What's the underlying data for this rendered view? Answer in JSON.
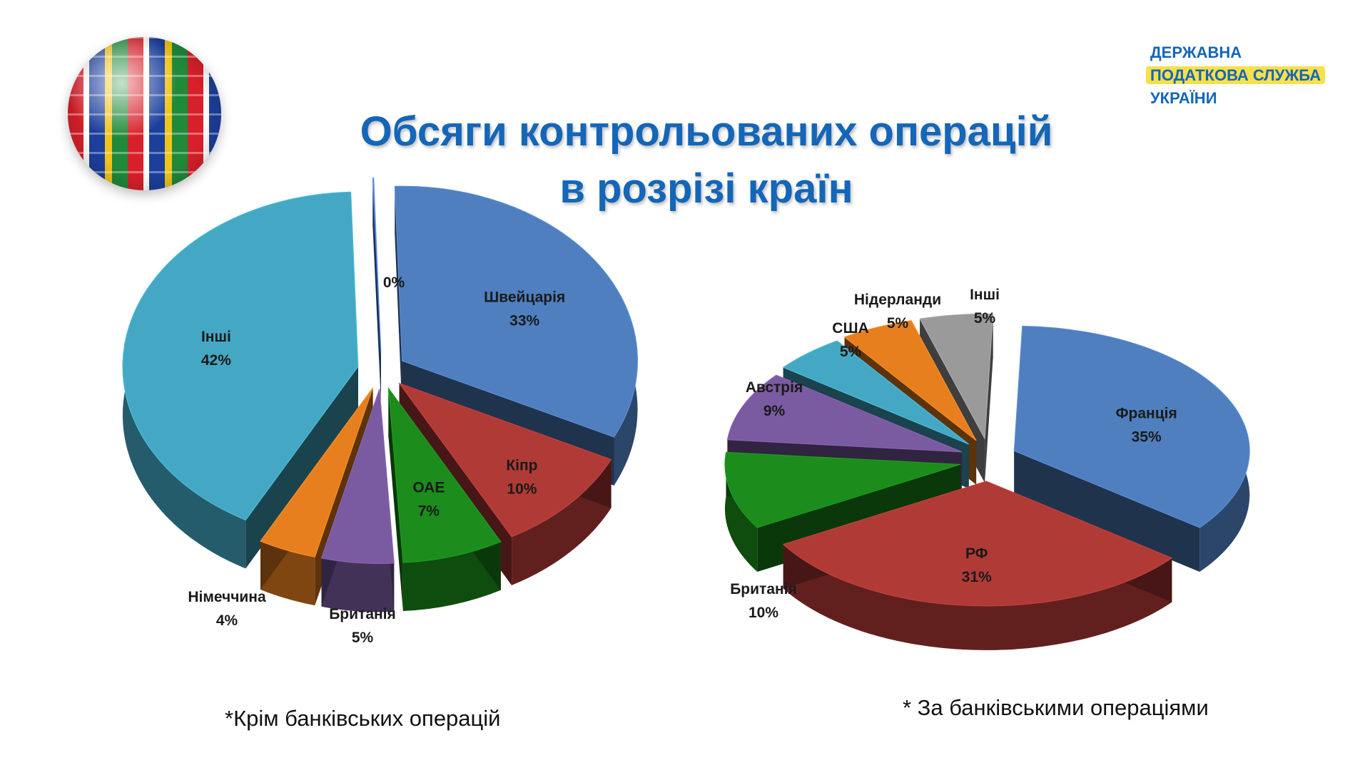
{
  "title_line1": "Обсяги контрольованих операцій",
  "title_line2": "в розрізі країн",
  "logo": {
    "line1": "ДЕРЖАВНА",
    "line2": "ПОДАТКОВА СЛУЖБА",
    "line3": "УКРАЇНИ"
  },
  "footnote_left": "*Крім банківських операцій",
  "footnote_right": "* За банківськими операціями",
  "chart_data": [
    {
      "type": "pie",
      "series": [
        {
          "values": [
            0,
            33,
            10,
            7,
            5,
            4,
            42
          ]
        }
      ],
      "categories": [
        "",
        "Швейцарія",
        "Кіпр",
        "ОАЕ",
        "Британія",
        "Німеччина",
        "Інші"
      ],
      "labels": [
        "0%",
        "33%",
        "10%",
        "7%",
        "5%",
        "4%",
        "42%"
      ],
      "colors": [
        "#4a7bd0",
        "#4f7fbf",
        "#b03a36",
        "#1c8c1c",
        "#7a5aa0",
        "#e77f1f",
        "#44a8c4"
      ]
    },
    {
      "type": "pie",
      "series": [
        {
          "values": [
            35,
            31,
            10,
            9,
            5,
            5,
            5
          ]
        }
      ],
      "categories": [
        "Франція",
        "РФ",
        "Британія",
        "Австрія",
        "США",
        "Нідерланди",
        "Інші"
      ],
      "labels": [
        "35%",
        "31%",
        "10%",
        "9%",
        "5%",
        "5%",
        "5%"
      ],
      "colors": [
        "#4f7fbf",
        "#b03a36",
        "#1c8c1c",
        "#7a5aa0",
        "#44a8c4",
        "#e77f1f",
        "#9a9a9a"
      ]
    }
  ]
}
